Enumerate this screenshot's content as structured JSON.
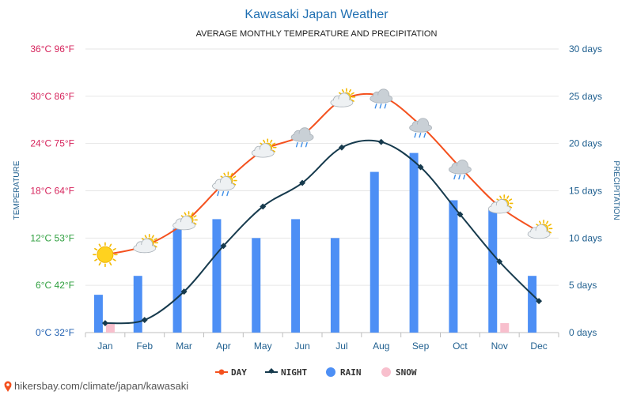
{
  "header": {
    "title": "Kawasaki Japan Weather",
    "subtitle": "AVERAGE MONTHLY TEMPERATURE AND PRECIPITATION"
  },
  "footer": {
    "url": "hikersbay.com/climate/japan/kawasaki"
  },
  "colors": {
    "day": "#f4511e",
    "night": "#163a4d",
    "rain": "#4d8ff5",
    "snow": "#f8bfcd",
    "grid": "#e6e6e6",
    "title": "#1f6fb2"
  },
  "chart_data": {
    "type": "bar",
    "categories": [
      "Jan",
      "Feb",
      "Mar",
      "Apr",
      "May",
      "Jun",
      "Jul",
      "Aug",
      "Sep",
      "Oct",
      "Nov",
      "Dec"
    ],
    "title": "Kawasaki Japan Weather",
    "subtitle": "AVERAGE MONTHLY TEMPERATURE AND PRECIPITATION",
    "ylabel_left": "TEMPERATURE",
    "ylabel_right": "PRECIPITATION",
    "ylim_left": [
      0,
      36
    ],
    "ylim_right": [
      0,
      30
    ],
    "yticks_left": [
      {
        "value": 0,
        "label": "0°C 32°F",
        "color": "#1f5fb0"
      },
      {
        "value": 6,
        "label": "6°C 42°F",
        "color": "#2e9f3e"
      },
      {
        "value": 12,
        "label": "12°C 53°F",
        "color": "#2e9f3e"
      },
      {
        "value": 18,
        "label": "18°C 64°F",
        "color": "#d6245c"
      },
      {
        "value": 24,
        "label": "24°C 75°F",
        "color": "#d6245c"
      },
      {
        "value": 30,
        "label": "30°C 86°F",
        "color": "#d6245c"
      },
      {
        "value": 36,
        "label": "36°C 96°F",
        "color": "#d6245c"
      }
    ],
    "yticks_right": [
      {
        "value": 0,
        "label": "0 days"
      },
      {
        "value": 5,
        "label": "5 days"
      },
      {
        "value": 10,
        "label": "10 days"
      },
      {
        "value": 15,
        "label": "15 days"
      },
      {
        "value": 20,
        "label": "20 days"
      },
      {
        "value": 25,
        "label": "25 days"
      },
      {
        "value": 30,
        "label": "30 days"
      }
    ],
    "grid": true,
    "legend_position": "bottom",
    "series": [
      {
        "name": "DAY",
        "type": "line",
        "axis": "left",
        "values": [
          9.9,
          11.0,
          13.9,
          18.9,
          23.1,
          25.1,
          29.5,
          30.0,
          26.3,
          21.0,
          16.0,
          12.8
        ]
      },
      {
        "name": "NIGHT",
        "type": "line",
        "axis": "left",
        "values": [
          1.2,
          1.6,
          5.2,
          11.0,
          16.0,
          19.0,
          23.5,
          24.2,
          21.0,
          15.0,
          9.0,
          4.0
        ]
      },
      {
        "name": "RAIN",
        "type": "bar",
        "axis": "right",
        "values": [
          4,
          6,
          11,
          12,
          10,
          12,
          10,
          17,
          19,
          14,
          13,
          6
        ]
      },
      {
        "name": "SNOW",
        "type": "bar",
        "axis": "right",
        "values": [
          1,
          0,
          0,
          0,
          0,
          0,
          0,
          0,
          0,
          0,
          1,
          0
        ]
      }
    ],
    "weather_icons": [
      "sun",
      "sun-cloud",
      "sun-cloud",
      "sun-rain-cloud",
      "sun-cloud",
      "rain-cloud",
      "sun-cloud",
      "rain-cloud",
      "rain-cloud",
      "rain-cloud",
      "sun-cloud",
      "sun-cloud"
    ]
  }
}
